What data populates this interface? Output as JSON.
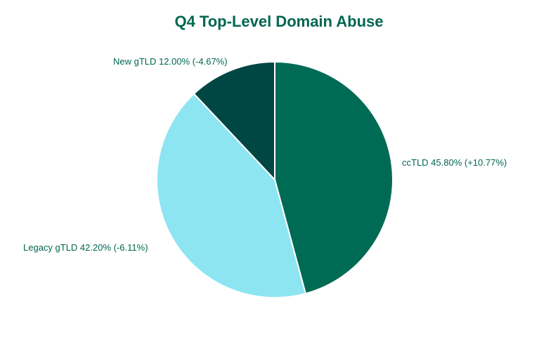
{
  "chart_data": {
    "type": "pie",
    "title": "Q4 Top-Level Domain Abuse",
    "title_color": "#00664f",
    "label_color": "#00664f",
    "slice_border_color": "#ffffff",
    "start": "12 o'clock",
    "direction": "clockwise",
    "slices": [
      {
        "label": "ccTLD 45.80% (+10.77%)",
        "value": 45.8,
        "color": "#006b55"
      },
      {
        "label": "Legacy gTLD 42.20% (-6.11%)",
        "value": 42.2,
        "color": "#8de5f1"
      },
      {
        "label": "New gTLD 12.00% (-4.67%)",
        "value": 12.0,
        "color": "#004744"
      }
    ]
  }
}
